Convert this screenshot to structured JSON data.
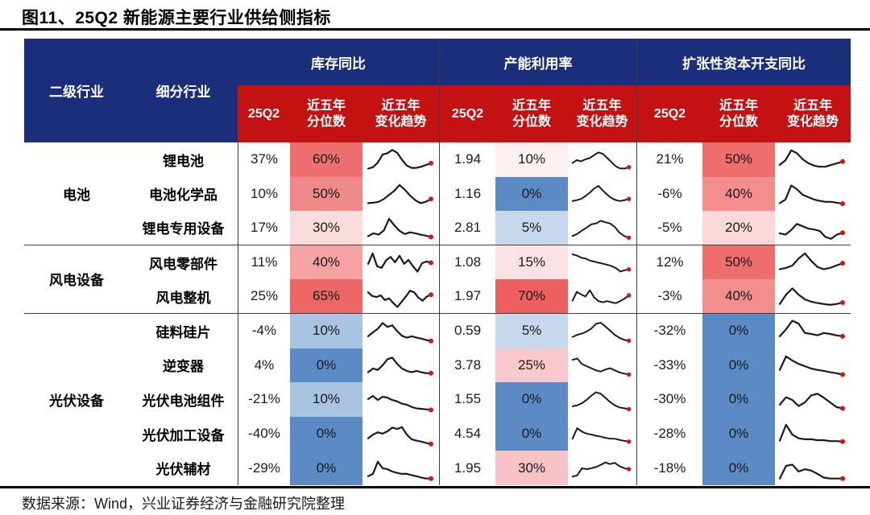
{
  "title": "图11、25Q2 新能源主要行业供给侧指标",
  "source_note": "数据来源：Wind，兴业证券经济与金融研究院整理",
  "colors": {
    "header_blue": "#1B2E7B",
    "header_red": "#C41111",
    "percentile_high_red": "#EE5F5F",
    "percentile_low_blue": "#5C8AC5",
    "spark_line": "#1a1a1a",
    "spark_dot": "#DD1111"
  },
  "chart_data": {
    "type": "table",
    "title": "25Q2 新能源主要行业供给侧指标",
    "columns": {
      "industry": "二级行业",
      "segment": "细分行业"
    },
    "metric_groups": [
      "库存同比",
      "产能利用率",
      "扩张性资本开支同比"
    ],
    "sub_headers": {
      "q": "25Q2",
      "pct_l1": "近五年",
      "pct_l2": "分位数",
      "trend_l1": "近五年",
      "trend_l2": "变化趋势"
    },
    "groups": [
      {
        "industry": "电池",
        "rows": [
          {
            "segment": "锂电池",
            "inventory_yoy": {
              "value": "37%",
              "pctile": "60%",
              "bg": "#ED6F6F",
              "trend": [
                0.12,
                0.18,
                0.38,
                0.72,
                0.78,
                0.92,
                0.8,
                0.5,
                0.25,
                0.15,
                0.15,
                0.2,
                0.28,
                0.35
              ]
            },
            "capacity_util": {
              "value": "1.94",
              "pctile": "10%",
              "bg": "#FCF0F1",
              "trend": [
                0.35,
                0.48,
                0.42,
                0.52,
                0.58,
                0.72,
                0.85,
                0.78,
                0.58,
                0.38,
                0.18,
                0.08,
                0.08,
                0.14
              ]
            },
            "capex_yoy": {
              "value": "21%",
              "pctile": "50%",
              "bg": "#EE6E6E",
              "trend": [
                0.28,
                0.48,
                0.9,
                0.78,
                0.52,
                0.35,
                0.25,
                0.2,
                0.2,
                0.28,
                0.35,
                0.42
              ]
            }
          },
          {
            "segment": "电池化学品",
            "inventory_yoy": {
              "value": "10%",
              "pctile": "50%",
              "bg": "#F08A8A",
              "trend": [
                0.12,
                0.14,
                0.18,
                0.3,
                0.48,
                0.65,
                0.9,
                0.7,
                0.45,
                0.25,
                0.12,
                0.18,
                0.3
              ]
            },
            "capacity_util": {
              "value": "1.16",
              "pctile": "0%",
              "bg": "#5C8AC5",
              "trend": [
                0.18,
                0.22,
                0.28,
                0.42,
                0.58,
                0.78,
                0.9,
                0.68,
                0.48,
                0.32,
                0.22,
                0.18,
                0.22,
                0.28
              ]
            },
            "capex_yoy": {
              "value": "-6%",
              "pctile": "40%",
              "bg": "#F28E8E",
              "trend": [
                0.12,
                0.28,
                0.88,
                0.72,
                0.48,
                0.38,
                0.28,
                0.22,
                0.18,
                0.18,
                0.14,
                0.1
              ]
            }
          },
          {
            "segment": "锂电专用设备",
            "inventory_yoy": {
              "value": "17%",
              "pctile": "30%",
              "bg": "#FADCDC",
              "trend": [
                0.15,
                0.28,
                0.22,
                0.4,
                0.9,
                0.62,
                0.38,
                0.25,
                0.32,
                0.28,
                0.22,
                0.18,
                0.12
              ]
            },
            "capacity_util": {
              "value": "2.81",
              "pctile": "5%",
              "bg": "#C7D8EC",
              "trend": [
                0.12,
                0.22,
                0.38,
                0.52,
                0.68,
                0.72,
                0.85,
                0.78,
                0.72,
                0.55,
                0.28,
                0.12,
                0.04
              ]
            },
            "capex_yoy": {
              "value": "-5%",
              "pctile": "20%",
              "bg": "#FBD9DA",
              "trend": [
                0.28,
                0.22,
                0.42,
                0.68,
                0.58,
                0.48,
                0.44,
                0.38,
                0.12,
                0.04,
                0.22,
                0.3
              ]
            }
          }
        ]
      },
      {
        "industry": "风电设备",
        "rows": [
          {
            "segment": "风电零部件",
            "inventory_yoy": {
              "value": "11%",
              "pctile": "40%",
              "bg": "#F4A2A2",
              "trend": [
                0.45,
                0.9,
                0.35,
                0.28,
                0.6,
                0.75,
                0.52,
                0.8,
                0.45,
                0.62,
                0.35,
                0.12,
                0.48,
                0.55,
                0.5
              ]
            },
            "capacity_util": {
              "value": "1.08",
              "pctile": "15%",
              "bg": "#FBE3E5",
              "trend": [
                0.9,
                0.84,
                0.74,
                0.7,
                0.6,
                0.55,
                0.5,
                0.45,
                0.4,
                0.34,
                0.24,
                0.08,
                0.14,
                0.18
              ]
            },
            "capex_yoy": {
              "value": "12%",
              "pctile": "50%",
              "bg": "#EE6E6E",
              "trend": [
                0.22,
                0.28,
                0.38,
                0.68,
                0.9,
                0.58,
                0.32,
                0.22,
                0.28,
                0.38,
                0.48
              ]
            }
          },
          {
            "segment": "风电整机",
            "inventory_yoy": {
              "value": "25%",
              "pctile": "65%",
              "bg": "#ED6666",
              "trend": [
                0.68,
                0.52,
                0.48,
                0.55,
                0.35,
                0.42,
                0.22,
                0.05,
                0.28,
                0.5,
                0.75,
                0.68,
                0.45,
                0.32,
                0.5,
                0.58
              ]
            },
            "capacity_util": {
              "value": "1.97",
              "pctile": "70%",
              "bg": "#EE5F5F",
              "trend": [
                0.3,
                0.72,
                0.6,
                0.5,
                0.8,
                0.45,
                0.28,
                0.22,
                0.28,
                0.22,
                0.18,
                0.28,
                0.4,
                0.55
              ]
            },
            "capex_yoy": {
              "value": "-3%",
              "pctile": "40%",
              "bg": "#F28E8E",
              "trend": [
                0.18,
                0.58,
                0.85,
                0.58,
                0.38,
                0.28,
                0.22,
                0.18,
                0.14,
                0.18,
                0.24
              ]
            }
          }
        ]
      },
      {
        "industry": "光伏设备",
        "rows": [
          {
            "segment": "硅料硅片",
            "inventory_yoy": {
              "value": "-4%",
              "pctile": "10%",
              "bg": "#A9C3E2",
              "trend": [
                0.28,
                0.45,
                0.6,
                0.85,
                0.68,
                0.75,
                0.5,
                0.3,
                0.22,
                0.28,
                0.22,
                0.18,
                0.12,
                0.08
              ]
            },
            "capacity_util": {
              "value": "0.59",
              "pctile": "5%",
              "bg": "#C7D8EC",
              "trend": [
                0.22,
                0.32,
                0.38,
                0.48,
                0.62,
                0.85,
                0.9,
                0.72,
                0.52,
                0.32,
                0.18,
                0.08,
                0.04
              ]
            },
            "capex_yoy": {
              "value": "-32%",
              "pctile": "0%",
              "bg": "#5C8AC5",
              "trend": [
                0.28,
                0.58,
                0.95,
                0.82,
                0.42,
                0.38,
                0.32,
                0.42,
                0.38,
                0.32,
                0.28
              ]
            }
          },
          {
            "segment": "逆变器",
            "inventory_yoy": {
              "value": "4%",
              "pctile": "0%",
              "bg": "#5C8AC5",
              "trend": [
                0.22,
                0.38,
                0.32,
                0.52,
                0.78,
                0.85,
                0.58,
                0.38,
                0.28,
                0.22,
                0.28,
                0.22,
                0.18,
                0.18
              ]
            },
            "capacity_util": {
              "value": "3.78",
              "pctile": "25%",
              "bg": "#F9C8CC",
              "trend": [
                0.78,
                0.85,
                0.58,
                0.48,
                0.38,
                0.28,
                0.22,
                0.32,
                0.38,
                0.28,
                0.18,
                0.12,
                0.08
              ]
            },
            "capex_yoy": {
              "value": "-33%",
              "pctile": "0%",
              "bg": "#5C8AC5",
              "trend": [
                0.32,
                0.9,
                0.72,
                0.58,
                0.48,
                0.38,
                0.32,
                0.28,
                0.22,
                0.18,
                0.12
              ]
            }
          },
          {
            "segment": "光伏电池组件",
            "inventory_yoy": {
              "value": "-21%",
              "pctile": "10%",
              "bg": "#A9C3E2",
              "trend": [
                0.52,
                0.65,
                0.48,
                0.62,
                0.58,
                0.48,
                0.42,
                0.32,
                0.28,
                0.18,
                0.12,
                0.1,
                0.08,
                0.05
              ]
            },
            "capacity_util": {
              "value": "1.55",
              "pctile": "0%",
              "bg": "#5C8AC5",
              "trend": [
                0.18,
                0.22,
                0.32,
                0.48,
                0.68,
                0.85,
                0.78,
                0.58,
                0.38,
                0.22,
                0.12,
                0.08,
                0.04
              ]
            },
            "capex_yoy": {
              "value": "-30%",
              "pctile": "0%",
              "bg": "#5C8AC5",
              "trend": [
                0.28,
                0.6,
                0.48,
                0.22,
                0.38,
                0.68,
                0.75,
                0.58,
                0.38,
                0.18,
                0.12
              ]
            }
          },
          {
            "segment": "光伏加工设备",
            "inventory_yoy": {
              "value": "-40%",
              "pctile": "0%",
              "bg": "#5C8AC5",
              "trend": [
                0.32,
                0.48,
                0.58,
                0.52,
                0.62,
                0.78,
                0.72,
                0.8,
                0.48,
                0.28,
                0.22,
                0.18,
                0.12,
                0.08
              ]
            },
            "capacity_util": {
              "value": "4.54",
              "pctile": "0%",
              "bg": "#5C8AC5",
              "trend": [
                0.28,
                0.78,
                0.62,
                0.52,
                0.48,
                0.42,
                0.38,
                0.32,
                0.28,
                0.28,
                0.22,
                0.18,
                0.14
              ]
            },
            "capex_yoy": {
              "value": "-28%",
              "pctile": "0%",
              "bg": "#5C8AC5",
              "trend": [
                0.22,
                0.9,
                0.48,
                0.32,
                0.28,
                0.28,
                0.24,
                0.24,
                0.2,
                0.2,
                0.18
              ]
            }
          },
          {
            "segment": "光伏辅材",
            "inventory_yoy": {
              "value": "-29%",
              "pctile": "0%",
              "bg": "#5C8AC5",
              "trend": [
                0.18,
                0.28,
                0.8,
                0.52,
                0.48,
                0.38,
                0.32,
                0.28,
                0.28,
                0.22,
                0.18,
                0.12,
                0.08,
                0.08
              ]
            },
            "capacity_util": {
              "value": "1.95",
              "pctile": "30%",
              "bg": "#F8C3C6",
              "trend": [
                0.12,
                0.18,
                0.52,
                0.48,
                0.52,
                0.58,
                0.68,
                0.8,
                0.72,
                0.78,
                0.62,
                0.52,
                0.48
              ]
            },
            "capex_yoy": {
              "value": "-18%",
              "pctile": "0%",
              "bg": "#5C8AC5",
              "trend": [
                0.08,
                0.62,
                0.68,
                0.38,
                0.48,
                0.42,
                0.28,
                0.12,
                0.08,
                0.08,
                0.08
              ]
            }
          }
        ]
      }
    ]
  }
}
